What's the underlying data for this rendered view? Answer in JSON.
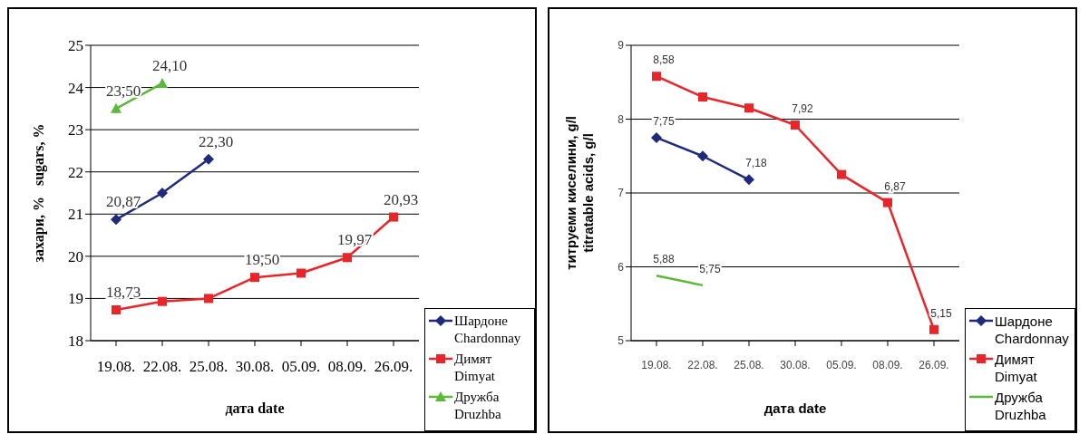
{
  "chart_data": [
    {
      "type": "line",
      "ylabel": "захари, %   sugars, %",
      "xlabel": "дата   date",
      "categories": [
        "19.08.",
        "22.08.",
        "25.08.",
        "30.08.",
        "05.09.",
        "08.09.",
        "26.09."
      ],
      "ylim": [
        18,
        25
      ],
      "yticks": [
        18,
        19,
        20,
        21,
        22,
        23,
        24,
        25
      ],
      "grid": "y",
      "legend": "bottom right",
      "series": [
        {
          "name": "Шардоне Chardonnay",
          "color": "#1f2a7a",
          "marker": "diamond",
          "values": [
            20.87,
            21.5,
            22.3,
            null,
            null,
            null,
            null
          ],
          "value_labels": [
            "20,87",
            null,
            "22,30",
            null,
            null,
            null,
            null
          ]
        },
        {
          "name": "Димят Dimyat",
          "color": "#e8262a",
          "marker": "square",
          "values": [
            18.73,
            18.93,
            19.0,
            19.5,
            19.6,
            19.97,
            20.93
          ],
          "value_labels": [
            "18,73",
            null,
            null,
            "19,50",
            null,
            "19,97",
            "20,93"
          ]
        },
        {
          "name": "Дружба Druzhba",
          "color": "#5cb83a",
          "marker": "triangle",
          "values": [
            23.5,
            24.1,
            null,
            null,
            null,
            null,
            null
          ],
          "value_labels": [
            "23,50",
            "24,10",
            null,
            null,
            null,
            null,
            null
          ]
        }
      ]
    },
    {
      "type": "line",
      "ylabel": "титруеми киселини, g/l\ntitratable acids, g/l",
      "xlabel": "дата   date",
      "categories": [
        "19.08.",
        "22.08.",
        "25.08.",
        "30.08.",
        "05.09.",
        "08.09.",
        "26.09."
      ],
      "ylim": [
        5,
        9
      ],
      "yticks": [
        5,
        6,
        7,
        8,
        9
      ],
      "grid": "y",
      "legend": "bottom right",
      "series": [
        {
          "name": "Шардоне Chardonnay",
          "color": "#1f2a7a",
          "marker": "diamond",
          "values": [
            7.75,
            7.5,
            7.18,
            null,
            null,
            null,
            null
          ],
          "value_labels": [
            "7,75",
            null,
            "7,18",
            null,
            null,
            null,
            null
          ]
        },
        {
          "name": "Димят Dimyat",
          "color": "#e8262a",
          "marker": "square",
          "values": [
            8.58,
            8.3,
            8.15,
            7.92,
            7.25,
            6.87,
            5.15
          ],
          "value_labels": [
            "8,58",
            null,
            null,
            "7,92",
            null,
            "6,87",
            "5,15"
          ]
        },
        {
          "name": "Дружба Druzhba",
          "color": "#5cb83a",
          "marker": "none",
          "values": [
            5.88,
            5.75,
            null,
            null,
            null,
            null,
            null
          ],
          "value_labels": [
            "5,88",
            "5,75",
            null,
            null,
            null,
            null,
            null
          ]
        }
      ]
    }
  ]
}
